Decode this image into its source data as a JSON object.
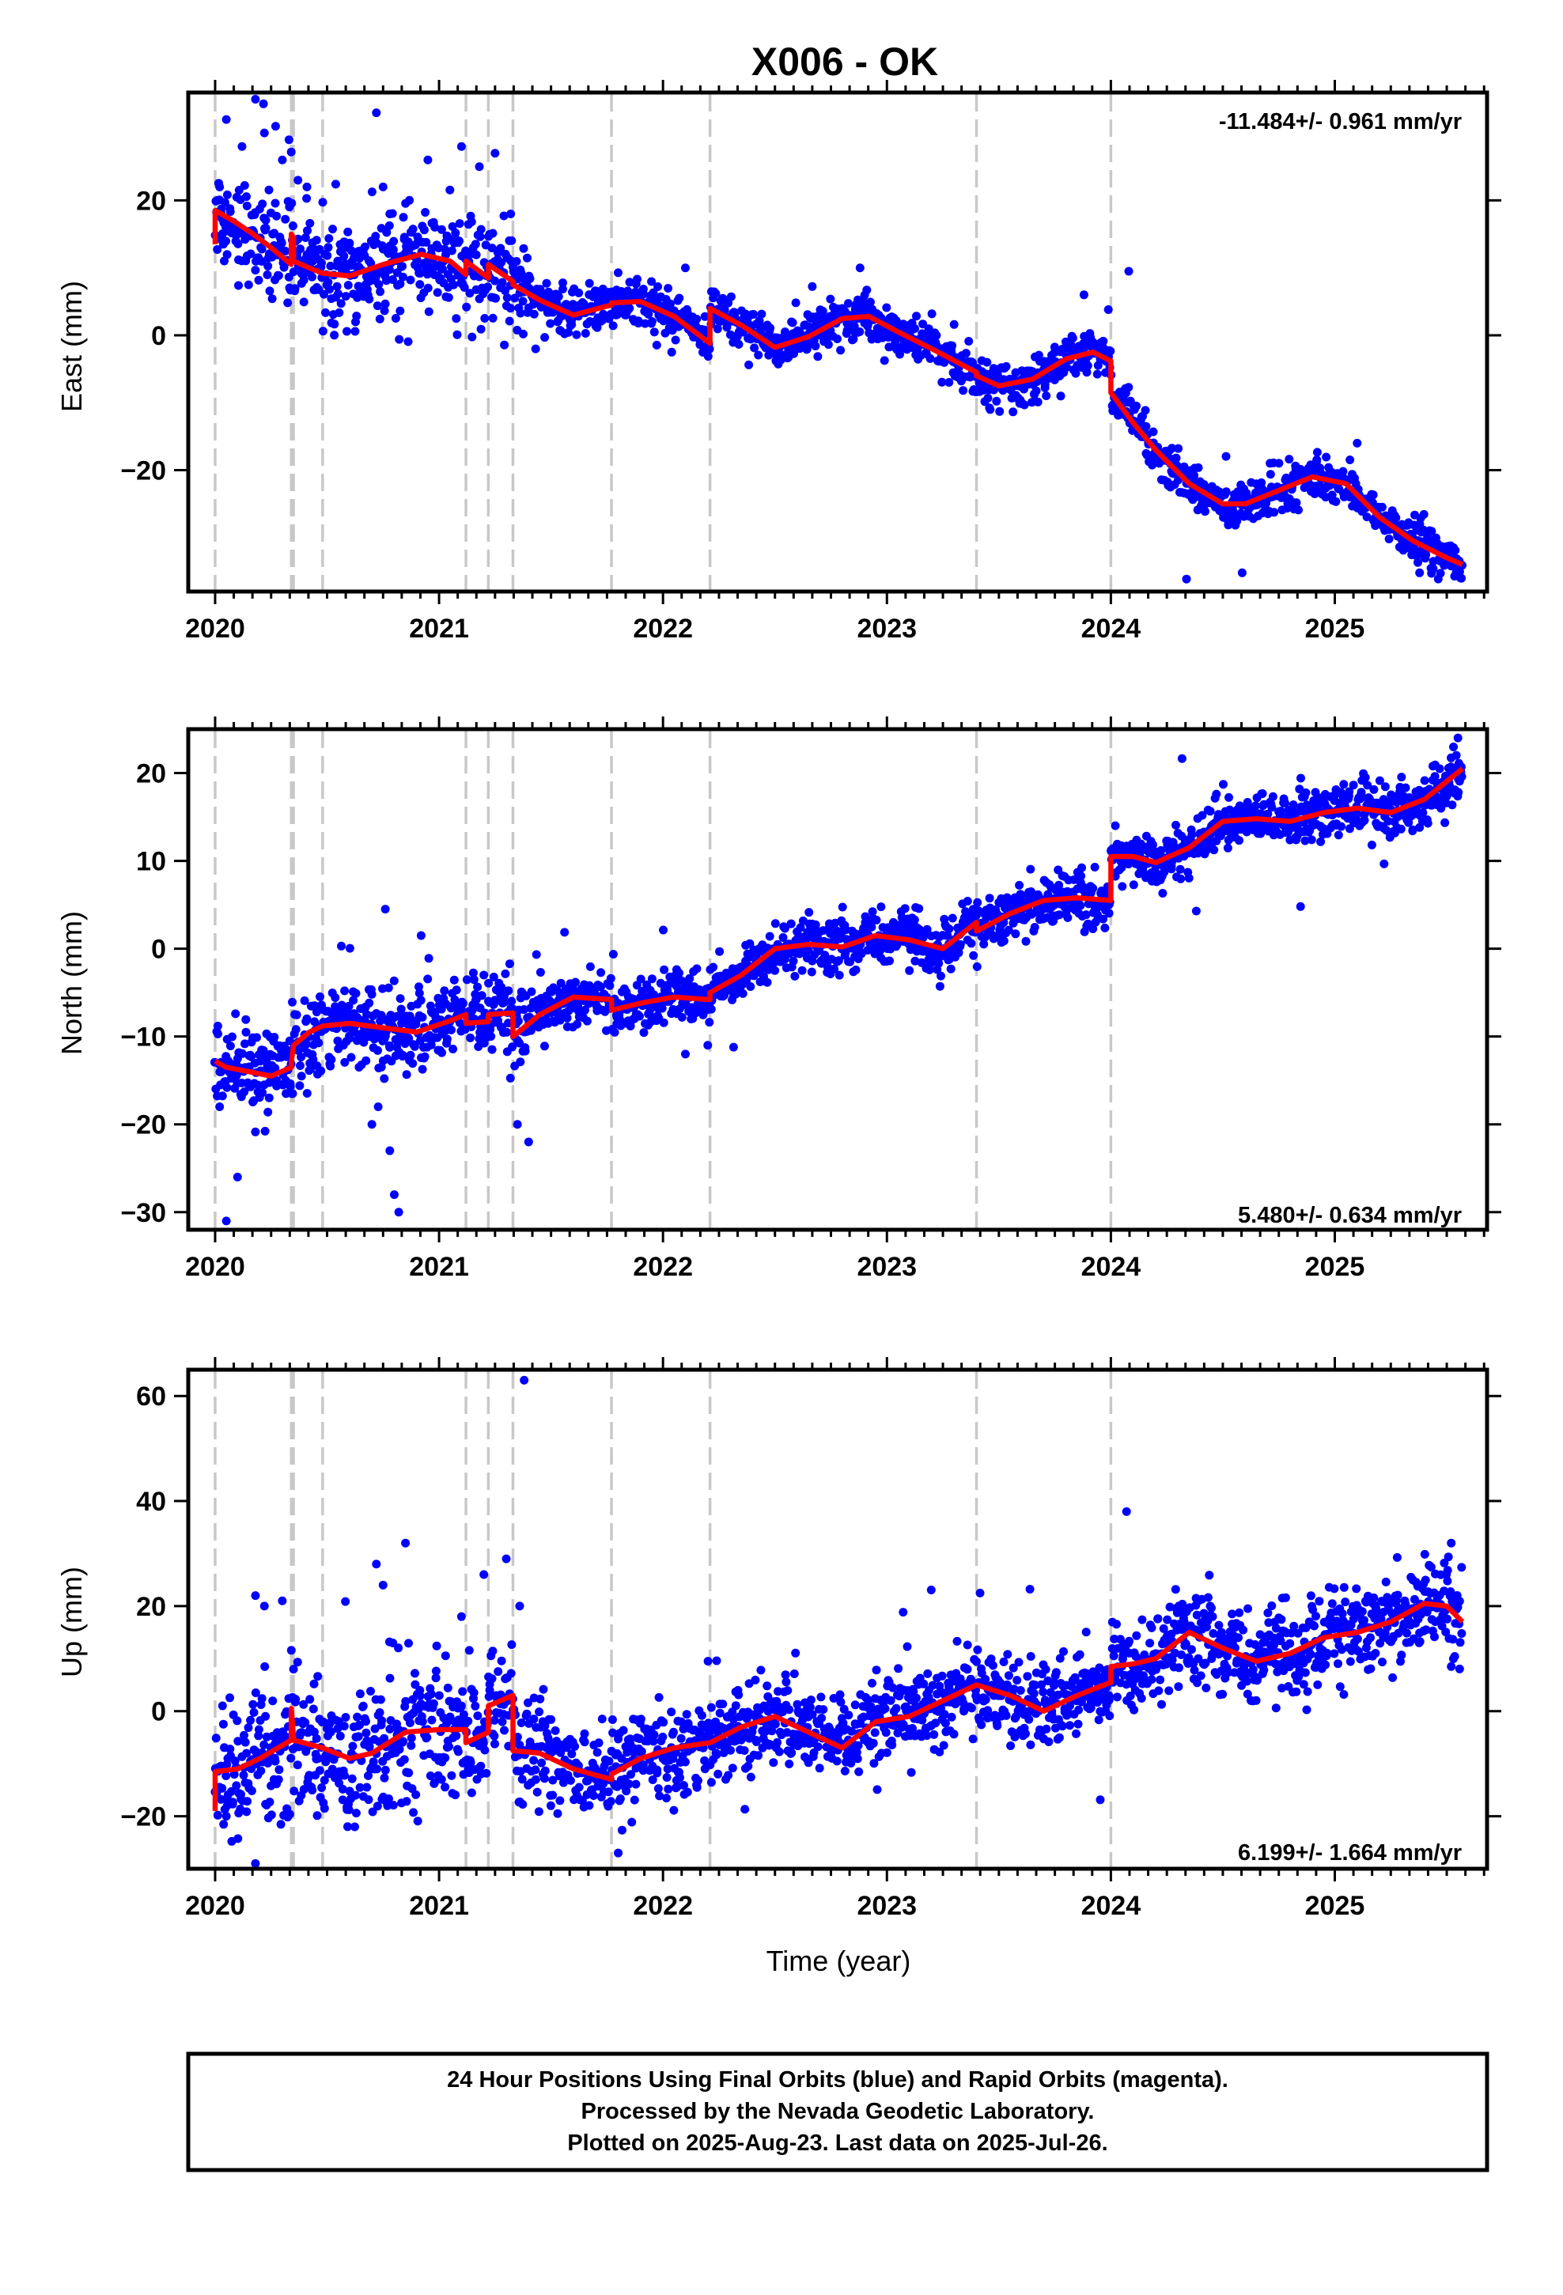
{
  "chart_data": {
    "type": "scatter",
    "title": "X006 - OK",
    "xlabel": "Time (year)",
    "xlim": [
      2019.88,
      2025.68
    ],
    "x_ticks": [
      "2020",
      "2021",
      "2022",
      "2023",
      "2024",
      "2025"
    ],
    "colors": {
      "observations": "#0000ff",
      "model": "#ff0000",
      "offsets": "#c8c8c8"
    },
    "offset_epochs": [
      2020.0,
      2020.34,
      2020.35,
      2020.48,
      2021.12,
      2021.22,
      2021.33,
      2021.77,
      2022.21,
      2023.4,
      2024.0
    ],
    "panels": [
      {
        "name": "east",
        "ylabel": "East (mm)",
        "ylim": [
          -38,
          36
        ],
        "y_ticks": [
          "20",
          "0",
          "−20"
        ],
        "rate_text": "-11.484+/- 0.961 mm/yr",
        "rate_position": "top-right",
        "series": [
          {
            "name": "model",
            "x": [
              2020.0,
              2020.0,
              2020.08,
              2020.17,
              2020.25,
              2020.34,
              2020.34,
              2020.35,
              2020.35,
              2020.42,
              2020.48,
              2020.6,
              2020.75,
              2020.92,
              2021.05,
              2021.12,
              2021.12,
              2021.22,
              2021.22,
              2021.33,
              2021.33,
              2021.45,
              2021.6,
              2021.77,
              2021.77,
              2021.9,
              2022.05,
              2022.21,
              2022.21,
              2022.35,
              2022.5,
              2022.65,
              2022.8,
              2022.92,
              2023.05,
              2023.2,
              2023.4,
              2023.4,
              2023.5,
              2023.65,
              2023.8,
              2023.92,
              2024.0,
              2024.0,
              2024.1,
              2024.2,
              2024.35,
              2024.5,
              2024.6,
              2024.75,
              2024.9,
              2025.05,
              2025.2,
              2025.35,
              2025.5,
              2025.57
            ],
            "y": [
              13.5,
              18.5,
              17,
              15,
              13,
              10.5,
              15,
              14.5,
              11,
              10,
              9.2,
              8.8,
              10.5,
              12,
              11,
              9,
              11,
              8.5,
              10.5,
              8,
              7.5,
              5.2,
              3,
              4.5,
              4.8,
              5,
              2.8,
              -1.2,
              4,
              1.5,
              -1.8,
              -0.2,
              2.5,
              2.8,
              0.5,
              -2,
              -5.5,
              -6,
              -7.5,
              -6.5,
              -3.5,
              -2.5,
              -3.8,
              -8.5,
              -13,
              -17,
              -22,
              -25,
              -25,
              -23,
              -21,
              -22,
              -27,
              -30.5,
              -33,
              -34
            ]
          },
          {
            "name": "observations",
            "samples": [
              [
                2020.02,
                22
              ],
              [
                2020.05,
                32
              ],
              [
                2020.12,
                28
              ],
              [
                2020.18,
                35
              ],
              [
                2020.22,
                30
              ],
              [
                2020.27,
                31
              ],
              [
                2020.3,
                26
              ],
              [
                2020.33,
                29
              ],
              [
                2020.37,
                23
              ],
              [
                2020.41,
                22
              ],
              [
                2020.72,
                33
              ],
              [
                2020.75,
                22
              ],
              [
                2020.78,
                18
              ],
              [
                2020.95,
                26
              ],
              [
                2021.1,
                28
              ],
              [
                2021.18,
                25
              ],
              [
                2021.25,
                27
              ],
              [
                2021.32,
                18
              ],
              [
                2022.1,
                10
              ],
              [
                2022.88,
                10
              ],
              [
                2023.88,
                6
              ],
              [
                2024.08,
                9.5
              ],
              [
                2025.1,
                -16
              ]
            ],
            "count": 2000
          }
        ]
      },
      {
        "name": "north",
        "ylabel": "North (mm)",
        "ylim": [
          -32,
          25
        ],
        "y_ticks": [
          "20",
          "10",
          "0",
          "−10",
          "−20",
          "−30"
        ],
        "rate_text": "5.480+/- 0.634 mm/yr",
        "rate_position": "bottom-right",
        "series": [
          {
            "name": "model",
            "x": [
              2020.0,
              2020.05,
              2020.15,
              2020.25,
              2020.34,
              2020.34,
              2020.35,
              2020.42,
              2020.48,
              2020.6,
              2020.75,
              2020.9,
              2021.05,
              2021.12,
              2021.12,
              2021.22,
              2021.22,
              2021.33,
              2021.33,
              2021.45,
              2021.6,
              2021.77,
              2021.77,
              2021.9,
              2022.05,
              2022.21,
              2022.21,
              2022.35,
              2022.5,
              2022.65,
              2022.8,
              2022.95,
              2023.1,
              2023.25,
              2023.4,
              2023.4,
              2023.55,
              2023.7,
              2023.85,
              2024.0,
              2024.0,
              2024.1,
              2024.2,
              2024.35,
              2024.5,
              2024.65,
              2024.8,
              2024.95,
              2025.1,
              2025.25,
              2025.4,
              2025.57
            ],
            "y": [
              -12.8,
              -13.5,
              -14,
              -14.5,
              -13.5,
              -13,
              -11,
              -9.5,
              -8.8,
              -8.5,
              -9,
              -9.5,
              -8.2,
              -7.5,
              -8.5,
              -8.3,
              -7.5,
              -7.3,
              -10,
              -7.5,
              -5.5,
              -5.8,
              -7,
              -6.2,
              -5.5,
              -5.8,
              -5,
              -3,
              0,
              0.5,
              0.2,
              1.5,
              1,
              0,
              3,
              2,
              4,
              5.5,
              5.8,
              5.5,
              10.5,
              10.5,
              9.8,
              11.5,
              14.5,
              14.8,
              14.5,
              15.5,
              16,
              15.5,
              17,
              20.5
            ]
          },
          {
            "name": "observations",
            "samples": [
              [
                2020.1,
                -26
              ],
              [
                2020.05,
                -31
              ],
              [
                2020.02,
                -18
              ],
              [
                2020.7,
                -20
              ],
              [
                2020.76,
                4.5
              ],
              [
                2020.78,
                -23
              ],
              [
                2020.8,
                -28
              ],
              [
                2020.82,
                -30
              ],
              [
                2020.92,
                1.5
              ],
              [
                2021.2,
                -3
              ],
              [
                2021.35,
                -20
              ],
              [
                2021.4,
                -22
              ],
              [
                2022.1,
                -12
              ],
              [
                2022.2,
                -11
              ],
              [
                2024.02,
                14
              ],
              [
                2025.55,
                24
              ]
            ],
            "count": 2000
          }
        ]
      },
      {
        "name": "up",
        "ylabel": "Up (mm)",
        "ylim": [
          -30,
          65
        ],
        "y_ticks": [
          "60",
          "40",
          "20",
          "0",
          "−20"
        ],
        "rate_text": "6.199+/- 1.664 mm/yr",
        "rate_position": "bottom-right",
        "series": [
          {
            "name": "model",
            "x": [
              2020.0,
              2020.0,
              2020.1,
              2020.2,
              2020.3,
              2020.34,
              2020.34,
              2020.35,
              2020.35,
              2020.48,
              2020.6,
              2020.7,
              2020.85,
              2021.0,
              2021.12,
              2021.12,
              2021.22,
              2021.22,
              2021.33,
              2021.33,
              2021.45,
              2021.6,
              2021.77,
              2021.77,
              2021.9,
              2022.05,
              2022.21,
              2022.21,
              2022.35,
              2022.5,
              2022.65,
              2022.8,
              2022.95,
              2023.1,
              2023.25,
              2023.4,
              2023.4,
              2023.55,
              2023.7,
              2023.85,
              2024.0,
              2024.0,
              2024.1,
              2024.2,
              2024.35,
              2024.5,
              2024.65,
              2024.8,
              2024.95,
              2025.1,
              2025.25,
              2025.4,
              2025.5,
              2025.57
            ],
            "y": [
              -19,
              -11.5,
              -11,
              -9,
              -6.5,
              -5.5,
              0.5,
              -5,
              -5.5,
              -7,
              -9,
              -8,
              -4,
              -3.5,
              -3.5,
              -6,
              -4,
              1,
              3,
              -7.5,
              -8,
              -11,
              -13,
              -12,
              -9,
              -7,
              -6,
              -6,
              -3,
              -1,
              -4,
              -7,
              -2,
              -1,
              2,
              5,
              5,
              3,
              0,
              3,
              5.5,
              8.5,
              9,
              10,
              15,
              12,
              9.5,
              11,
              14,
              15,
              17,
              20.5,
              20,
              17
            ]
          },
          {
            "name": "observations",
            "samples": [
              [
                2020.18,
                22
              ],
              [
                2020.22,
                20
              ],
              [
                2020.3,
                21
              ],
              [
                2020.35,
                8
              ],
              [
                2020.05,
                -20
              ],
              [
                2020.18,
                -29
              ],
              [
                2020.72,
                28
              ],
              [
                2020.85,
                32
              ],
              [
                2020.75,
                24
              ],
              [
                2021.1,
                18
              ],
              [
                2021.2,
                26
              ],
              [
                2021.3,
                29
              ],
              [
                2021.36,
                20
              ],
              [
                2021.38,
                63
              ],
              [
                2021.8,
                -27
              ],
              [
                2024.07,
                38
              ],
              [
                2025.52,
                32
              ]
            ],
            "count": 2000
          }
        ]
      }
    ],
    "footer": {
      "line1": "24 Hour Positions Using Final Orbits (blue) and Rapid Orbits (magenta).",
      "line2": "Processed by the Nevada Geodetic Laboratory.",
      "line3": "Plotted on 2025-Aug-23. Last data on 2025-Jul-26."
    }
  }
}
